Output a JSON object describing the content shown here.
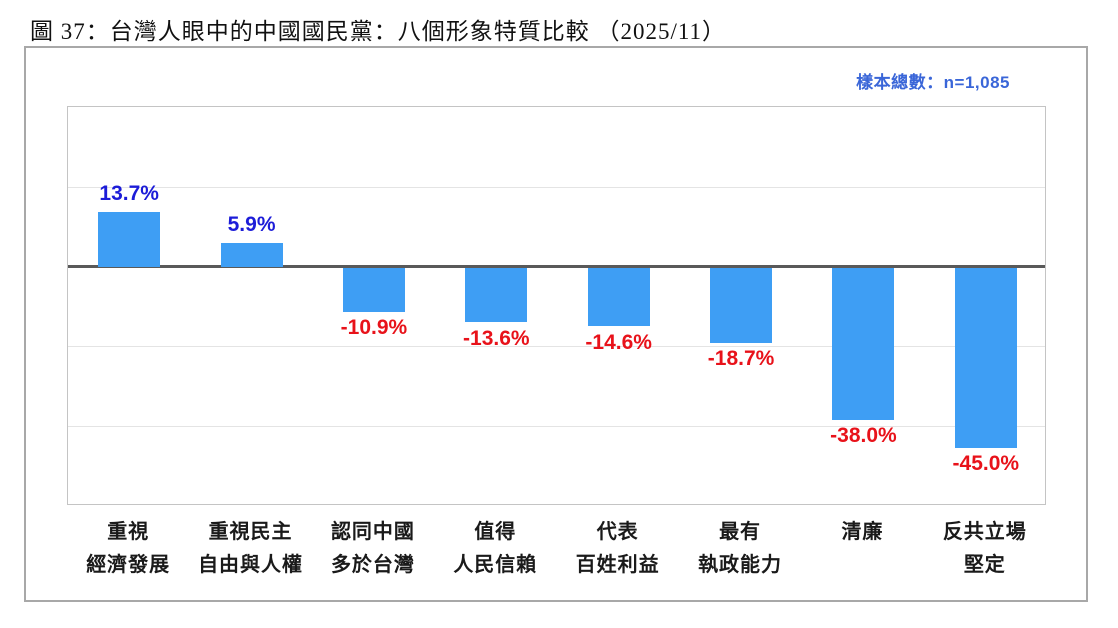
{
  "title": "圖 37：台灣人眼中的中國國民黨：八個形象特質比較 （2025/11）",
  "sample_note": "樣本總數：n=1,085",
  "colors": {
    "bar": "#3e9ef4",
    "positive_label": "#1c1cd8",
    "negative_label": "#e8121a",
    "sample_note": "#3a66d8",
    "zero_line": "#595959",
    "gridline": "#e4e4e4",
    "panel_border": "#a8a8a8",
    "plot_border": "#c4c4c4"
  },
  "chart_data": {
    "type": "bar",
    "title": "圖 37：台灣人眼中的中國國民黨：八個形象特質比較 （2025/11）",
    "subtitle": "樣本總數：n=1,085",
    "categories": [
      {
        "lines": [
          "重視",
          "經濟發展"
        ]
      },
      {
        "lines": [
          "重視民主",
          "自由與人權"
        ]
      },
      {
        "lines": [
          "認同中國",
          "多於台灣"
        ]
      },
      {
        "lines": [
          "值得",
          "人民信賴"
        ]
      },
      {
        "lines": [
          "代表",
          "百姓利益"
        ]
      },
      {
        "lines": [
          "最有",
          "執政能力"
        ]
      },
      {
        "lines": [
          "清廉"
        ]
      },
      {
        "lines": [
          "反共立場",
          "堅定"
        ]
      }
    ],
    "values": [
      13.7,
      5.9,
      -10.9,
      -13.6,
      -14.6,
      -18.7,
      -38.0,
      -45.0
    ],
    "value_labels": [
      "13.7%",
      "5.9%",
      "-10.9%",
      "-13.6%",
      "-14.6%",
      "-18.7%",
      "-38.0%",
      "-45.0%"
    ],
    "xlabel": "",
    "ylabel": "",
    "ylim": [
      -60,
      40
    ],
    "grid_interval": 20,
    "grid": true,
    "legend": null,
    "unit": "%"
  }
}
